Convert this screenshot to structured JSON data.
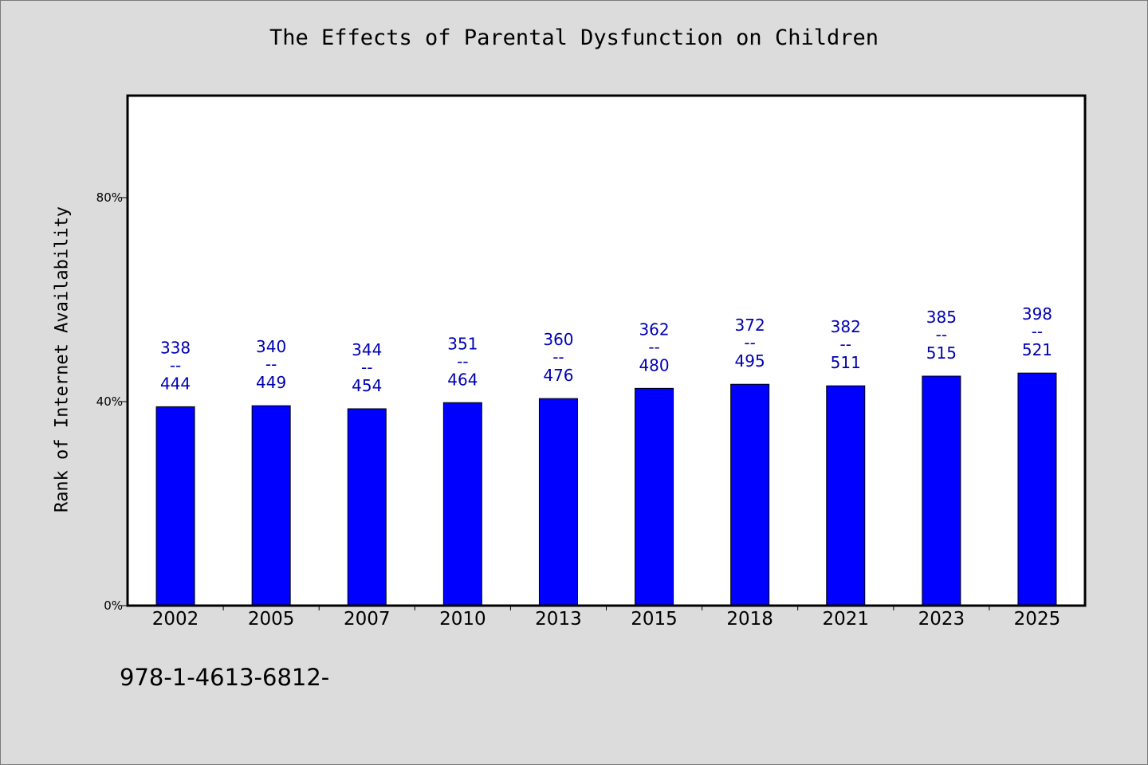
{
  "colors": {
    "background": "#dcdcdc",
    "plot_background": "#ffffff",
    "bar": "#0000ff",
    "data_label": "#0000b4"
  },
  "footer_text": "978-1-4613-6812-",
  "chart_data": {
    "type": "bar",
    "title": "The Effects of Parental Dysfunction on Children",
    "xlabel": "",
    "ylabel": "Rank of Internet Availability",
    "ylim": [
      0,
      100
    ],
    "yticks": [
      0,
      40,
      80
    ],
    "ytick_labels": [
      "0%",
      "40%",
      "80%"
    ],
    "grid": false,
    "categories": [
      "2002",
      "2005",
      "2007",
      "2010",
      "2013",
      "2015",
      "2018",
      "2021",
      "2023",
      "2025"
    ],
    "values": [
      39.0,
      39.2,
      38.6,
      39.8,
      40.6,
      42.6,
      43.4,
      43.1,
      45.0,
      45.6
    ],
    "labels_top": [
      "338",
      "340",
      "344",
      "351",
      "360",
      "362",
      "372",
      "382",
      "385",
      "398"
    ],
    "labels_mid": [
      "--",
      "--",
      "--",
      "--",
      "--",
      "--",
      "--",
      "--",
      "--",
      "--"
    ],
    "labels_bottom": [
      "444",
      "449",
      "454",
      "464",
      "476",
      "480",
      "495",
      "511",
      "515",
      "521"
    ]
  }
}
